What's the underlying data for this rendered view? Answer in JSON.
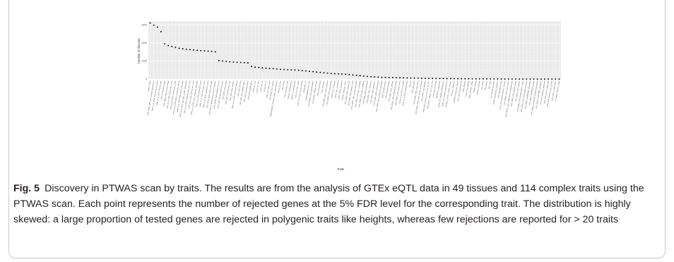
{
  "figure": {
    "label": "Fig. 5",
    "caption": "Discovery in PTWAS scan by traits. The results are from the analysis of GTEx eQTL data in 49 tissues and 114 complex traits using the PTWAS scan. Each point represents the number of rejected genes at the 5% FDR level for the corresponding trait. The distribution is highly skewed: a large proportion of tested genes are rejected in polygenic traits like heights, whereas few rejections are reported for > 20 traits"
  },
  "chart_data": {
    "type": "scatter",
    "title": "",
    "xlabel": "Traits",
    "ylabel": "Number of discover",
    "ylim": [
      0,
      3200
    ],
    "yticks": [
      0,
      1000,
      2000,
      3000
    ],
    "grid": true,
    "point_color": "#000000",
    "panel_color": "#ebebeb",
    "categories": [
      "GIANT_Height",
      "UKB_20002_1065_self_reported_hypertension",
      "Astle_et_al_2016_Red_blood_cell_count",
      "Astle_et_al_2016_Platelet_count",
      "UKB_50_Standing_height",
      "UKB_23099_Body_fat_percentage",
      "Astle_et_al_2016_Reticulocyte_count",
      "Astle_et_al_2016_Lymphocyte_counts",
      "Astle_et_al_2016_Mean_corpuscular_volume",
      "Astle_et_al_2016_White_blood_cell_count",
      "Astle_et_al_2016_High_light_scatter_reticulocyte",
      "Astle_et_al_2016_Myeloid_white_cell_count",
      "Astle_et_al_2016_Granulocyte_count",
      "Astle_et_al_2016_Sum_neutrophil_eosinophil",
      "Astle_et_al_2016_Neutrophil_count",
      "Astle_et_al_2016_Monocyte_count",
      "Astle_et_al_2016_Eosinophil_counts",
      "UKB_21001_Body_mass_index_BMI",
      "UKB_6152_9_diagnosed_by_doctor_Hayfever",
      "UKB_20016_Fluid_intelligence_score",
      "UKB_1180_Morning_evening_person",
      "UKB_20022_Birth_weight",
      "UKB_20127_Neuroticism_score",
      "UKB_1160_Sleep_duration",
      "Astle_et_al_2016_Eosinophil_percent",
      "UKB_1200_Insomnia",
      "UKB_2395_Hair_balding_pattern",
      "UKB_20116_Smoking_status",
      "UKB_6138_Qualifications",
      "GLGC_Mc_LDL",
      "GLGC_Mc_HDL",
      "GLGC_Mc_TG",
      "GLGC_Mc_TC",
      "UKB_1747_Hair_colour",
      "UKB_20002_1111_asthma",
      "IMMUNOBASE_Systemic_lupus_erythematosus",
      "EAGLE_Eczema",
      "IBD_Crohns",
      "IBD_Ulcerative_colitis",
      "MAGIC_FastingGlucose",
      "MAGIC_ln_FastingInsulin",
      "UKB_1717_Skin_colour",
      "UKB_1727_Ease_of_skin_tanning",
      "DIAGRAM_T2D",
      "CARDIoGRAM_C4D_CAD",
      "UKB_20002_1226_hypothyroidism",
      "RA_OKADA_TRANS_ETHNIC",
      "PGC_Schizophrenia",
      "IGAP_Alzheimer",
      "UKB_20002_1462_crohns_disease",
      "UKB_20002_1465_osteoarthritis",
      "GIANT_HIP_Combined",
      "GIANT_WC_Combined",
      "GIANT_WHR_Combined",
      "SSGAC_Education_Years",
      "UKB_20002_1309_osteoporosis",
      "UKB_20002_1154_irritable_bowel",
      "UKB_20002_1452_eczema_dermatitis",
      "UKB_20002_1473_high_cholesterol",
      "UKB_20002_1223_type_2_diabetes",
      "UKB_20002_1113_emphysema",
      "UKB_20002_1262_parkinsons",
      "UKB_20002_1286_depression",
      "UKB_20002_1289_schizophrenia",
      "UKB_20002_1313_ankylosing_spondylitis",
      "ICBP_SystolicPressure",
      "ICBP_DiastolicPressure",
      "UKB_20002_1453_psoriasis",
      "UKB_20002_1464_rheumatoid_arthritis",
      "UKB_20002_1474_hiatus_hernia",
      "Jones_et_al_2016_Chronotype",
      "Jones_et_al_2016_SleepDuration",
      "EGG_BL",
      "EGG_BW3_EUR",
      "UKB_20002_1081_heart_attack",
      "UKB_20002_1094_deep_venous_thrombosis",
      "UKB_20002_1220_diabetes",
      "UKB_6152_5_Blood_clot_in_the_leg_DVT",
      "UKB_6152_7_Blood_clot_in_the_lung",
      "UKB_6152_8_Asthma",
      "ADIPOGen_Adiponectin",
      "BCAC_ER_negative_BreastCancer",
      "BCAC_ER_positive_BreastCancer",
      "CKDGen_Chronic_Kidney_Disease",
      "CKDGen_eGFRcrea",
      "ENIGMA_Intracraniel_Volume",
      "GPC_NEO_NEUROTICISM",
      "IHGC_Migraine",
      "ILAE_Focal_Epilepsy",
      "ISGC_Ischemic_Stroke",
      "MAGIC_HbA1C",
      "MAGIC_Proinsulin",
      "PGC_ADHD",
      "PGC_Bipolar",
      "PGC_MDD",
      "RA_OKADA_European",
      "SSGAC_Depressive_Symptoms",
      "TAG_CigarettesPerDay",
      "UKB_1239_Current_tobacco_smoking",
      "UKB_20002_1075_heart_angina",
      "UKB_20002_1224_hypertrophic_cardiomyopathy",
      "UKB_20002_1381_systemic_lupus",
      "UKB_20002_1387_hayfever",
      "UKB_20002_1456_malabsorption_coeliac",
      "UKB_20002_1472_emphysema_bronchitis",
      "UKB_20003_1140861958_simvastatin",
      "UKB_20003_1140868226_aspirin",
      "UKB_20003_1141194794_bendroflumethiazide",
      "UKB_20003_1140879802_amlodipine",
      "UKB_2443_Diabetes_diagnosed",
      "UKB_2453_Cancer_diagnosed",
      "UKB_3526_Mothers_age_at_death",
      "UKB_6150_1_Heart_attack",
      "VA_Million_Veterans_Lipids"
    ],
    "values": [
      3100,
      2980,
      2870,
      2620,
      1950,
      1850,
      1800,
      1750,
      1700,
      1680,
      1650,
      1630,
      1610,
      1590,
      1570,
      1560,
      1550,
      1530,
      1510,
      1020,
      1000,
      980,
      960,
      940,
      930,
      920,
      910,
      900,
      700,
      660,
      640,
      620,
      600,
      590,
      580,
      560,
      540,
      530,
      520,
      510,
      500,
      490,
      470,
      450,
      430,
      410,
      390,
      370,
      350,
      330,
      310,
      300,
      290,
      280,
      270,
      250,
      230,
      210,
      190,
      170,
      150,
      130,
      120,
      110,
      100,
      95,
      90,
      85,
      80,
      75,
      70,
      65,
      60,
      55,
      50,
      45,
      40,
      38,
      35,
      32,
      30,
      28,
      26,
      24,
      22,
      20,
      18,
      16,
      15,
      14,
      13,
      12,
      11,
      10,
      9,
      8,
      7,
      6,
      5,
      4,
      3,
      2,
      2,
      1,
      1,
      1,
      1,
      0,
      0,
      0,
      0,
      0,
      0,
      0
    ]
  }
}
